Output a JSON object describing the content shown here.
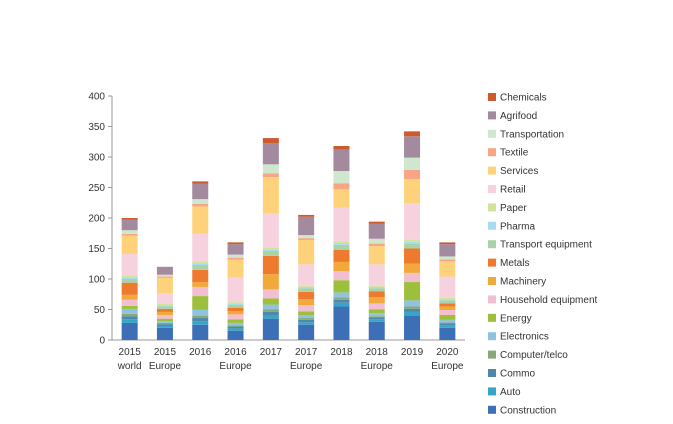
{
  "chart_data": {
    "type": "bar",
    "stacked": true,
    "categories": [
      [
        "2015",
        "world"
      ],
      [
        "2015",
        "Europe"
      ],
      [
        "2016",
        ""
      ],
      [
        "2016",
        "Europe"
      ],
      [
        "2017",
        ""
      ],
      [
        "2017",
        "Europe"
      ],
      [
        "2018",
        ""
      ],
      [
        "2018",
        "Europe"
      ],
      [
        "2019",
        ""
      ],
      [
        "2020",
        "Europe"
      ]
    ],
    "ylim": [
      0,
      400
    ],
    "yticks": [
      0,
      50,
      100,
      150,
      200,
      250,
      300,
      350,
      400
    ],
    "grid": false,
    "legend_position": "right",
    "series": [
      {
        "name": "Construction",
        "color": "#3d6fb6",
        "values": [
          28,
          20,
          25,
          15,
          35,
          25,
          55,
          30,
          40,
          20
        ]
      },
      {
        "name": "Auto",
        "color": "#35a6c4",
        "values": [
          6,
          3,
          6,
          4,
          6,
          4,
          6,
          4,
          6,
          4
        ]
      },
      {
        "name": "Commo",
        "color": "#4e88ad",
        "values": [
          5,
          3,
          5,
          3,
          5,
          4,
          5,
          3,
          5,
          3
        ]
      },
      {
        "name": "Computer/telco",
        "color": "#88a878",
        "values": [
          4,
          2,
          4,
          2,
          4,
          3,
          4,
          2,
          4,
          2
        ]
      },
      {
        "name": "Electronics",
        "color": "#8fc3e0",
        "values": [
          8,
          3,
          10,
          4,
          8,
          5,
          8,
          5,
          10,
          4
        ]
      },
      {
        "name": "Energy",
        "color": "#9cbf3c",
        "values": [
          5,
          4,
          22,
          6,
          10,
          6,
          20,
          6,
          30,
          8
        ]
      },
      {
        "name": "Household equipment",
        "color": "#f2bfd0",
        "values": [
          10,
          6,
          15,
          8,
          15,
          10,
          15,
          10,
          15,
          8
        ]
      },
      {
        "name": "Machinery",
        "color": "#f2a93b",
        "values": [
          8,
          5,
          8,
          5,
          25,
          10,
          15,
          10,
          15,
          6
        ]
      },
      {
        "name": "Metals",
        "color": "#ee7a2e",
        "values": [
          20,
          5,
          20,
          6,
          30,
          12,
          20,
          10,
          25,
          5
        ]
      },
      {
        "name": "Transport equipment",
        "color": "#a9d3a6",
        "values": [
          6,
          4,
          8,
          5,
          8,
          6,
          8,
          5,
          8,
          5
        ]
      },
      {
        "name": "Pharma",
        "color": "#a8dcf2",
        "values": [
          3,
          2,
          3,
          2,
          3,
          2,
          3,
          2,
          3,
          2
        ]
      },
      {
        "name": "Paper",
        "color": "#d2e39b",
        "values": [
          3,
          2,
          3,
          2,
          3,
          2,
          3,
          2,
          3,
          2
        ]
      },
      {
        "name": "Retail",
        "color": "#f6d2df",
        "values": [
          35,
          18,
          45,
          40,
          55,
          35,
          55,
          35,
          60,
          35
        ]
      },
      {
        "name": "Services",
        "color": "#fdd27a",
        "values": [
          30,
          25,
          45,
          30,
          60,
          40,
          30,
          30,
          40,
          25
        ]
      },
      {
        "name": "Textile",
        "color": "#f7a584",
        "values": [
          3,
          2,
          4,
          3,
          6,
          3,
          10,
          4,
          15,
          3
        ]
      },
      {
        "name": "Transportation",
        "color": "#cfe6cf",
        "values": [
          6,
          3,
          8,
          5,
          15,
          5,
          20,
          8,
          20,
          5
        ]
      },
      {
        "name": "Agrifood",
        "color": "#a48a9e",
        "values": [
          17,
          13,
          25,
          17,
          35,
          30,
          35,
          25,
          35,
          20
        ]
      },
      {
        "name": "Chemicals",
        "color": "#cc5a2a",
        "values": [
          3,
          0,
          4,
          3,
          8,
          3,
          6,
          3,
          8,
          3
        ]
      }
    ]
  }
}
